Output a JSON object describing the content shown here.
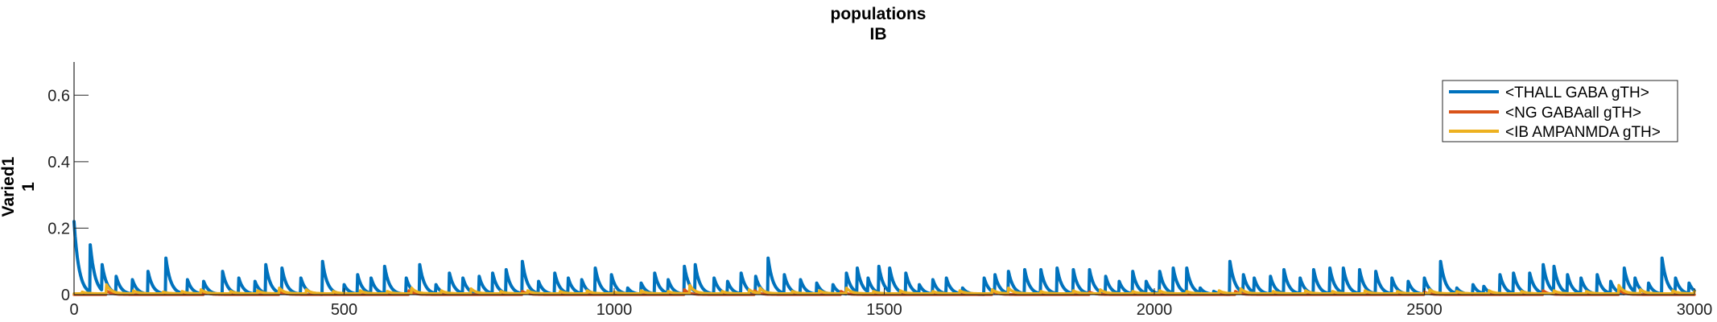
{
  "chart_data": {
    "type": "line",
    "title": [
      "populations",
      "IB"
    ],
    "ylabel": [
      "Varied1",
      "1"
    ],
    "xlabel": "",
    "xlim": [
      0,
      3000
    ],
    "ylim": [
      0,
      0.7
    ],
    "xticks": [
      0,
      500,
      1000,
      1500,
      2000,
      2500,
      3000
    ],
    "yticks": [
      0,
      0.2,
      0.4,
      0.6
    ],
    "ytick_labels": [
      "0",
      "0.2",
      "0.4",
      "0.6"
    ],
    "grid": false,
    "legend_position": "top-right",
    "series": [
      {
        "name": "<THALL GABA gTH>",
        "color": "#0072BD",
        "baseline": 0.0,
        "initial": {
          "x": 0,
          "y": 0.22,
          "decay_to": 30
        },
        "peaks": [
          [
            30,
            0.15
          ],
          [
            52,
            0.09
          ],
          [
            78,
            0.055
          ],
          [
            108,
            0.045
          ],
          [
            137,
            0.07
          ],
          [
            170,
            0.11
          ],
          [
            210,
            0.045
          ],
          [
            240,
            0.04
          ],
          [
            275,
            0.07
          ],
          [
            305,
            0.05
          ],
          [
            335,
            0.04
          ],
          [
            355,
            0.09
          ],
          [
            385,
            0.08
          ],
          [
            420,
            0.05
          ],
          [
            460,
            0.1
          ],
          [
            500,
            0.03
          ],
          [
            525,
            0.06
          ],
          [
            550,
            0.05
          ],
          [
            575,
            0.085
          ],
          [
            615,
            0.05
          ],
          [
            640,
            0.09
          ],
          [
            670,
            0.03
          ],
          [
            695,
            0.065
          ],
          [
            720,
            0.05
          ],
          [
            750,
            0.055
          ],
          [
            775,
            0.065
          ],
          [
            800,
            0.075
          ],
          [
            830,
            0.1
          ],
          [
            860,
            0.04
          ],
          [
            890,
            0.065
          ],
          [
            915,
            0.05
          ],
          [
            940,
            0.045
          ],
          [
            965,
            0.08
          ],
          [
            995,
            0.06
          ],
          [
            1025,
            0.02
          ],
          [
            1050,
            0.035
          ],
          [
            1075,
            0.065
          ],
          [
            1100,
            0.045
          ],
          [
            1130,
            0.085
          ],
          [
            1150,
            0.09
          ],
          [
            1185,
            0.05
          ],
          [
            1210,
            0.04
          ],
          [
            1235,
            0.065
          ],
          [
            1262,
            0.055
          ],
          [
            1285,
            0.11
          ],
          [
            1315,
            0.06
          ],
          [
            1345,
            0.045
          ],
          [
            1375,
            0.035
          ],
          [
            1405,
            0.03
          ],
          [
            1430,
            0.065
          ],
          [
            1450,
            0.08
          ],
          [
            1470,
            0.05
          ],
          [
            1490,
            0.085
          ],
          [
            1510,
            0.08
          ],
          [
            1540,
            0.065
          ],
          [
            1565,
            0.03
          ],
          [
            1590,
            0.045
          ],
          [
            1615,
            0.05
          ],
          [
            1645,
            0.02
          ],
          [
            1685,
            0.05
          ],
          [
            1705,
            0.06
          ],
          [
            1730,
            0.07
          ],
          [
            1760,
            0.075
          ],
          [
            1790,
            0.075
          ],
          [
            1820,
            0.08
          ],
          [
            1850,
            0.075
          ],
          [
            1880,
            0.075
          ],
          [
            1910,
            0.055
          ],
          [
            1935,
            0.04
          ],
          [
            1960,
            0.07
          ],
          [
            1985,
            0.04
          ],
          [
            2010,
            0.07
          ],
          [
            2035,
            0.08
          ],
          [
            2060,
            0.08
          ],
          [
            2085,
            0.02
          ],
          [
            2110,
            0.01
          ],
          [
            2140,
            0.1
          ],
          [
            2165,
            0.06
          ],
          [
            2185,
            0.05
          ],
          [
            2215,
            0.055
          ],
          [
            2240,
            0.075
          ],
          [
            2270,
            0.05
          ],
          [
            2295,
            0.075
          ],
          [
            2325,
            0.08
          ],
          [
            2350,
            0.08
          ],
          [
            2380,
            0.075
          ],
          [
            2410,
            0.07
          ],
          [
            2440,
            0.05
          ],
          [
            2470,
            0.04
          ],
          [
            2500,
            0.05
          ],
          [
            2530,
            0.1
          ],
          [
            2560,
            0.02
          ],
          [
            2590,
            0.03
          ],
          [
            2610,
            0.025
          ],
          [
            2640,
            0.06
          ],
          [
            2665,
            0.065
          ],
          [
            2695,
            0.065
          ],
          [
            2720,
            0.09
          ],
          [
            2740,
            0.085
          ],
          [
            2765,
            0.06
          ],
          [
            2790,
            0.05
          ],
          [
            2820,
            0.06
          ],
          [
            2845,
            0.04
          ],
          [
            2870,
            0.08
          ],
          [
            2890,
            0.05
          ],
          [
            2915,
            0.035
          ],
          [
            2940,
            0.11
          ],
          [
            2965,
            0.05
          ],
          [
            2990,
            0.035
          ]
        ]
      },
      {
        "name": "<NG GABAall gTH>",
        "color": "#D95319",
        "baseline": 0.0,
        "peaks": [
          [
            60,
            0.012
          ],
          [
            240,
            0.008
          ],
          [
            380,
            0.01
          ],
          [
            620,
            0.012
          ],
          [
            830,
            0.01
          ],
          [
            1130,
            0.015
          ],
          [
            1260,
            0.012
          ],
          [
            1420,
            0.01
          ],
          [
            1700,
            0.012
          ],
          [
            1880,
            0.008
          ],
          [
            2150,
            0.01
          ],
          [
            2500,
            0.008
          ],
          [
            2720,
            0.012
          ],
          [
            2860,
            0.015
          ]
        ]
      },
      {
        "name": "<IB AMPANMDA gTH>",
        "color": "#EDB120",
        "baseline": 0.003,
        "peaks": [
          [
            15,
            0.008
          ],
          [
            60,
            0.03
          ],
          [
            110,
            0.012
          ],
          [
            165,
            0.008
          ],
          [
            200,
            0.01
          ],
          [
            235,
            0.015
          ],
          [
            290,
            0.01
          ],
          [
            340,
            0.012
          ],
          [
            380,
            0.02
          ],
          [
            430,
            0.015
          ],
          [
            480,
            0.01
          ],
          [
            530,
            0.012
          ],
          [
            580,
            0.01
          ],
          [
            625,
            0.02
          ],
          [
            680,
            0.012
          ],
          [
            735,
            0.018
          ],
          [
            790,
            0.01
          ],
          [
            840,
            0.012
          ],
          [
            900,
            0.01
          ],
          [
            950,
            0.012
          ],
          [
            1000,
            0.008
          ],
          [
            1050,
            0.012
          ],
          [
            1100,
            0.01
          ],
          [
            1140,
            0.028
          ],
          [
            1200,
            0.01
          ],
          [
            1250,
            0.015
          ],
          [
            1270,
            0.02
          ],
          [
            1330,
            0.01
          ],
          [
            1380,
            0.012
          ],
          [
            1430,
            0.02
          ],
          [
            1480,
            0.01
          ],
          [
            1530,
            0.012
          ],
          [
            1590,
            0.01
          ],
          [
            1640,
            0.012
          ],
          [
            1700,
            0.015
          ],
          [
            1730,
            0.02
          ],
          [
            1790,
            0.01
          ],
          [
            1850,
            0.012
          ],
          [
            1900,
            0.015
          ],
          [
            1960,
            0.01
          ],
          [
            2010,
            0.012
          ],
          [
            2060,
            0.01
          ],
          [
            2120,
            0.012
          ],
          [
            2160,
            0.018
          ],
          [
            2220,
            0.01
          ],
          [
            2280,
            0.012
          ],
          [
            2330,
            0.01
          ],
          [
            2390,
            0.012
          ],
          [
            2450,
            0.01
          ],
          [
            2510,
            0.015
          ],
          [
            2560,
            0.01
          ],
          [
            2620,
            0.012
          ],
          [
            2680,
            0.01
          ],
          [
            2740,
            0.012
          ],
          [
            2800,
            0.01
          ],
          [
            2860,
            0.028
          ],
          [
            2900,
            0.015
          ],
          [
            2960,
            0.012
          ],
          [
            3000,
            0.01
          ]
        ]
      }
    ]
  }
}
